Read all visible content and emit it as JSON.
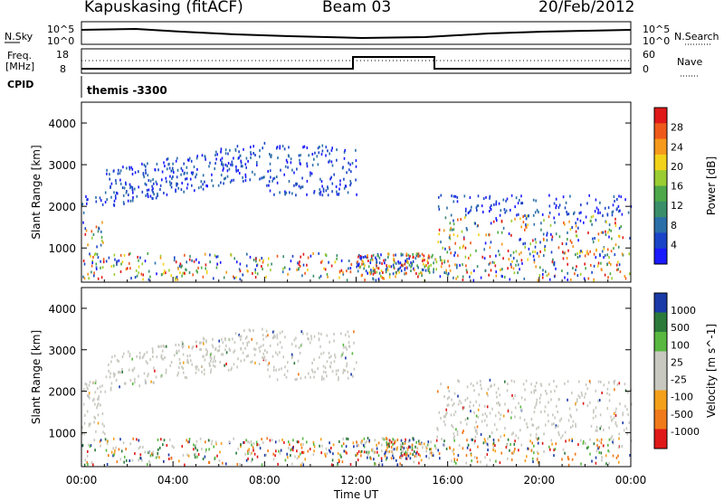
{
  "header": {
    "station": "Kapuskasing (fitACF)",
    "beam": "Beam 03",
    "date": "20/Feb/2012"
  },
  "top_panels": {
    "nsky_label": "N.Sky",
    "nsky_ticks": [
      "10^5",
      "10^0"
    ],
    "nsearch_label": "N.Search",
    "nsearch_ticks": [
      "10^5",
      "10^0"
    ],
    "freq_label": "Freq.",
    "freq_unit": "[MHz]",
    "freq_ticks": [
      "18",
      "8"
    ],
    "nave_label": "Nave",
    "nave_ticks": [
      "60",
      "0"
    ],
    "cpid_label": "CPID",
    "cpid_value": "themis -3300"
  },
  "chart_data": [
    {
      "type": "heatmap",
      "title": "",
      "ylabel": "Slant Range [km]",
      "xlabel": "",
      "ylim": [
        180,
        4500
      ],
      "yticks": [
        "1000",
        "2000",
        "3000",
        "4000"
      ],
      "colorbar": {
        "label": "Power [dB]",
        "ticks": [
          "4",
          "8",
          "12",
          "16",
          "20",
          "24",
          "28"
        ],
        "range": [
          0,
          30
        ]
      }
    },
    {
      "type": "heatmap",
      "title": "",
      "ylabel": "Slant Range [km]",
      "xlabel": "Time UT",
      "ylim": [
        180,
        4500
      ],
      "yticks": [
        "1000",
        "2000",
        "3000",
        "4000"
      ],
      "xticks": [
        "00:00",
        "04:00",
        "08:00",
        "12:00",
        "16:00",
        "20:00",
        "00:00"
      ],
      "xlim_hours": [
        0,
        24
      ],
      "colorbar": {
        "label": "Velocity [m s^-1]",
        "ticks": [
          "1000",
          "500",
          "100",
          "25",
          "-25",
          "-100",
          "-500",
          "-1000"
        ]
      }
    }
  ],
  "colors": {
    "power_scale": [
      "#1a1aff",
      "#1a44c8",
      "#2b6fa8",
      "#3a8f6a",
      "#4da84a",
      "#9acd32",
      "#f2d21a",
      "#f59a1c",
      "#ef5a1a",
      "#e01818"
    ],
    "velocity_scale": [
      "#e01818",
      "#f07a1a",
      "#f5a01a",
      "#c8c8c0",
      "#c8c8c0",
      "#58b840",
      "#2b7a3a",
      "#1a3aa8"
    ]
  }
}
